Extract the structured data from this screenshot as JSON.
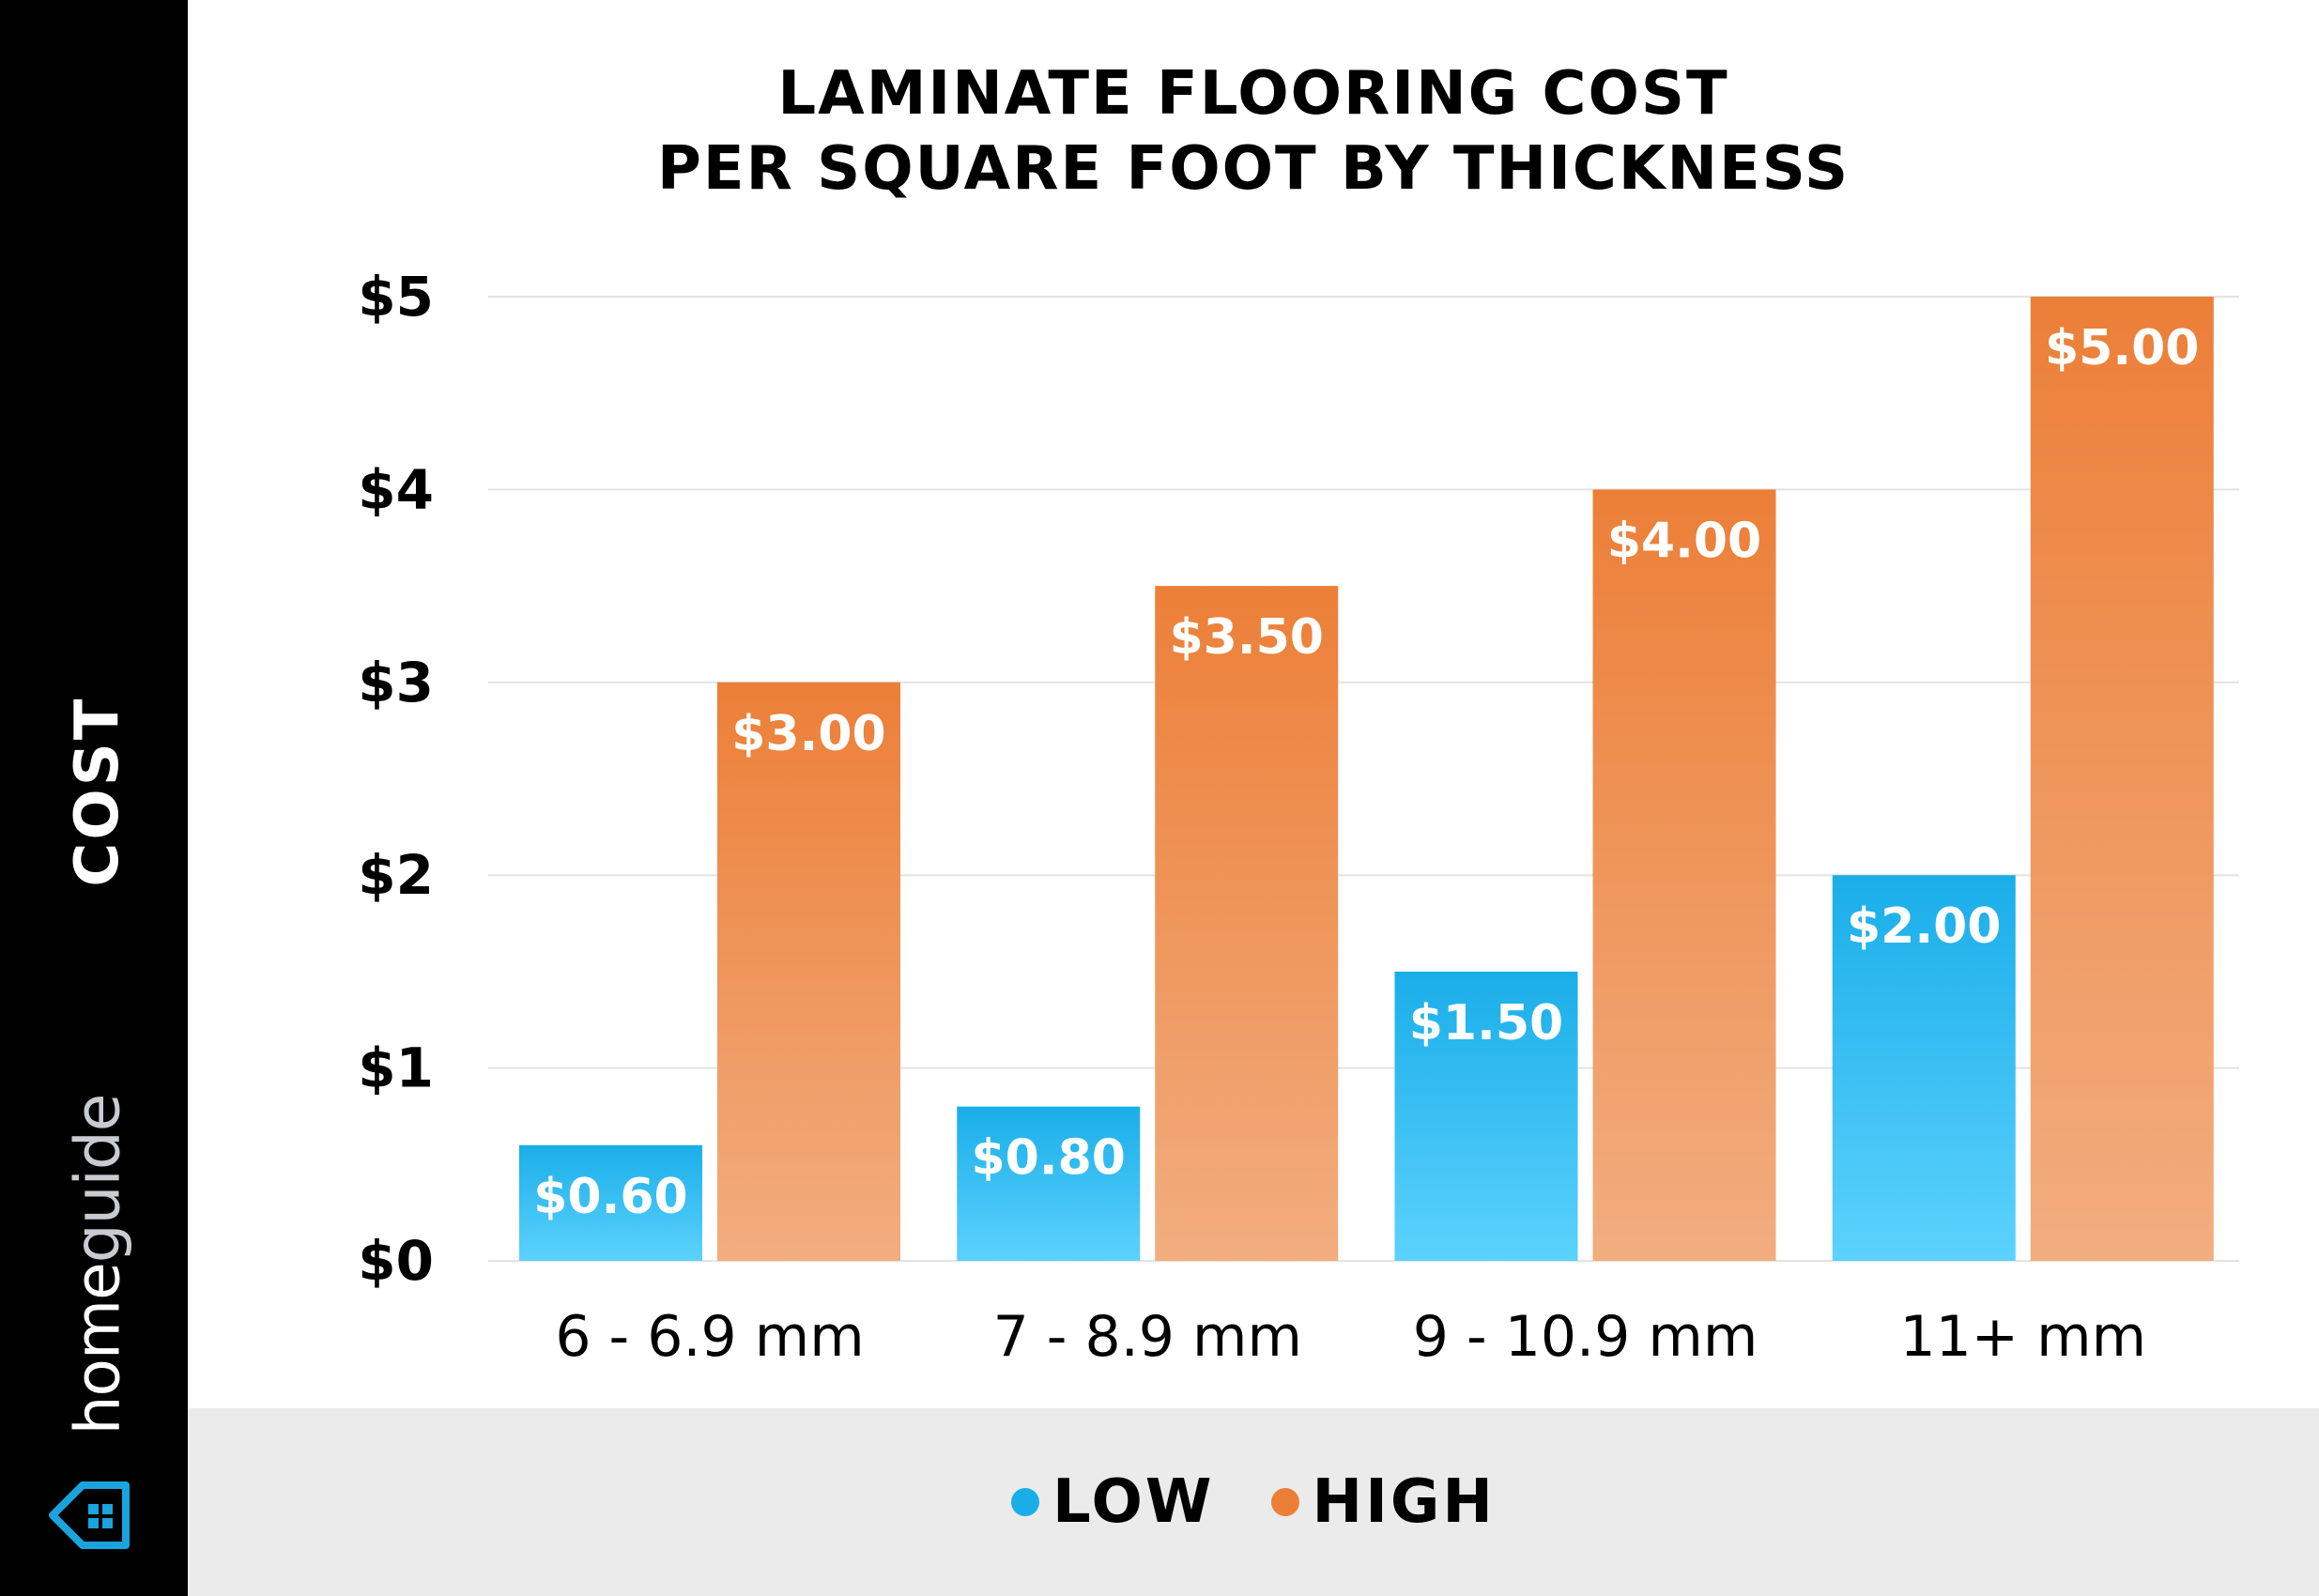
{
  "brand": {
    "name_part1": "home",
    "name_part2": "guide",
    "logo_icon": "house-icon"
  },
  "colors": {
    "low_top": "#1aaee9",
    "low_bottom": "#5cd2fd",
    "high_top": "#ec7f38",
    "high_bottom": "#f2ad7f",
    "sidebar": "#000000",
    "legend_background": "#ebebeb",
    "gridline": "#e3e3e3"
  },
  "legend": [
    {
      "label": "LOW",
      "color": "#1aaee9"
    },
    {
      "label": "HIGH",
      "color": "#ec7f38"
    }
  ],
  "chart_data": {
    "type": "bar",
    "title_lines": [
      "LAMINATE FLOORING COST",
      "PER SQUARE FOOT BY THICKNESS"
    ],
    "ylabel": "COST",
    "xlabel": "",
    "categories": [
      "6 - 6.9 mm",
      "7 - 8.9 mm",
      "9 - 10.9 mm",
      "11+ mm"
    ],
    "series": [
      {
        "name": "LOW",
        "values": [
          0.6,
          0.8,
          1.5,
          2.0
        ],
        "labels": [
          "$0.60",
          "$0.80",
          "$1.50",
          "$2.00"
        ]
      },
      {
        "name": "HIGH",
        "values": [
          3.0,
          3.5,
          4.0,
          5.0
        ],
        "labels": [
          "$3.00",
          "$3.50",
          "$4.00",
          "$5.00"
        ]
      }
    ],
    "ylim": [
      0,
      5
    ],
    "yticks": [
      0,
      1,
      2,
      3,
      4,
      5
    ],
    "ytick_labels": [
      "$0",
      "$1",
      "$2",
      "$3",
      "$4",
      "$5"
    ],
    "grid": true,
    "legend_position": "bottom"
  }
}
